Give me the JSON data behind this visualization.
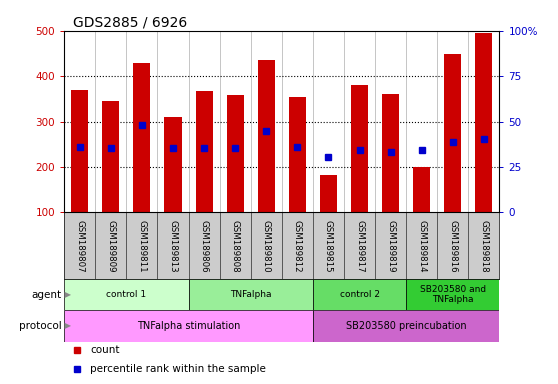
{
  "title": "GDS2885 / 6926",
  "samples": [
    "GSM189807",
    "GSM189809",
    "GSM189811",
    "GSM189813",
    "GSM189806",
    "GSM189808",
    "GSM189810",
    "GSM189812",
    "GSM189815",
    "GSM189817",
    "GSM189819",
    "GSM189814",
    "GSM189816",
    "GSM189818"
  ],
  "counts": [
    370,
    345,
    430,
    310,
    368,
    358,
    435,
    353,
    183,
    381,
    360,
    200,
    449,
    495
  ],
  "percentile_ranks": [
    245,
    242,
    293,
    242,
    242,
    242,
    280,
    245,
    222,
    237,
    232,
    237,
    256,
    262
  ],
  "ylim": [
    100,
    500
  ],
  "y2lim": [
    0,
    100
  ],
  "yticks": [
    100,
    200,
    300,
    400,
    500
  ],
  "y2ticks": [
    0,
    25,
    50,
    75,
    100
  ],
  "bar_color": "#cc0000",
  "dot_color": "#0000cc",
  "agent_groups": [
    {
      "label": "control 1",
      "start": 0,
      "end": 4,
      "color": "#ccffcc"
    },
    {
      "label": "TNFalpha",
      "start": 4,
      "end": 8,
      "color": "#99ee99"
    },
    {
      "label": "control 2",
      "start": 8,
      "end": 11,
      "color": "#66dd66"
    },
    {
      "label": "SB203580 and\nTNFalpha",
      "start": 11,
      "end": 14,
      "color": "#33cc33"
    }
  ],
  "protocol_groups": [
    {
      "label": "TNFalpha stimulation",
      "start": 0,
      "end": 8,
      "color": "#ff99ff"
    },
    {
      "label": "SB203580 preincubation",
      "start": 8,
      "end": 14,
      "color": "#cc66cc"
    }
  ],
  "bg_color": "#ffffff",
  "tick_color_left": "#cc0000",
  "tick_color_right": "#0000cc",
  "sample_bg": "#cccccc",
  "bar_width": 0.55
}
